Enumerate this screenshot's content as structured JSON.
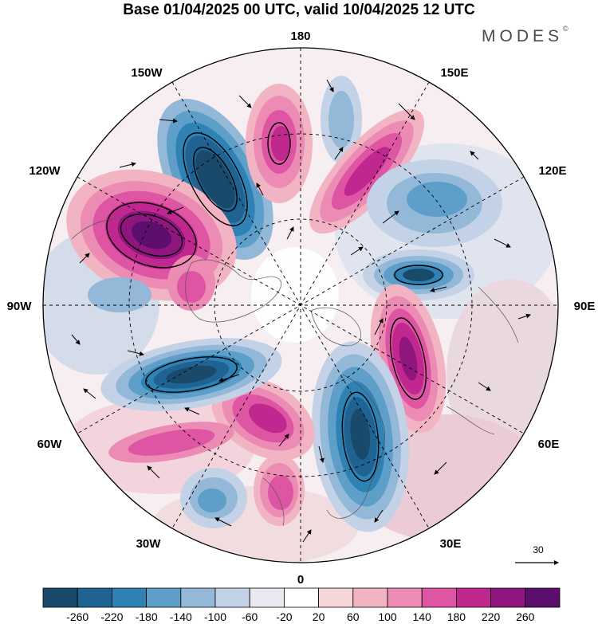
{
  "title": "Base 01/04/2025 00 UTC, valid 10/04/2025 12 UTC",
  "brand": {
    "name": "MODES",
    "mark": "©"
  },
  "longitude_labels": {
    "top": "180",
    "top_left": "150W",
    "top_right": "150E",
    "upper_left": "120W",
    "upper_right": "120E",
    "left": "90W",
    "right": "90E",
    "lower_left": "60W",
    "lower_right": "60E",
    "bottom_left": "30W",
    "bottom_right": "30E",
    "bottom": "0"
  },
  "reference_vector": {
    "label": "30"
  },
  "colorbar": {
    "labels": [
      "-260",
      "-220",
      "-180",
      "-140",
      "-100",
      "-60",
      "-20",
      "20",
      "60",
      "100",
      "140",
      "180",
      "220",
      "260"
    ],
    "colors": [
      "#1a4a6b",
      "#1f6393",
      "#2f82b4",
      "#5e9fca",
      "#93b8d8",
      "#c3d2e6",
      "#e8e8f1",
      "#ffffff",
      "#f7d6d8",
      "#f2b4c3",
      "#ec8cb4",
      "#dd55a3",
      "#c0278f",
      "#8f167f",
      "#5c0e6d"
    ]
  },
  "projection": "north-polar-stereographic",
  "anomaly_centres": [
    {
      "sign": "negative",
      "value": -260,
      "lon_sector": "160W"
    },
    {
      "sign": "positive",
      "value": 240,
      "lon_sector": "170W"
    },
    {
      "sign": "positive",
      "value": 260,
      "lon_sector": "120W"
    },
    {
      "sign": "negative",
      "value": -140,
      "lon_sector": "170E"
    },
    {
      "sign": "positive",
      "value": 220,
      "lon_sector": "160E"
    },
    {
      "sign": "negative",
      "value": -160,
      "lon_sector": "140E"
    },
    {
      "sign": "negative",
      "value": -260,
      "lon_sector": "110E"
    },
    {
      "sign": "positive",
      "value": 260,
      "lon_sector": "70E"
    },
    {
      "sign": "negative",
      "value": -260,
      "lon_sector": "20E"
    },
    {
      "sign": "positive",
      "value": 220,
      "lon_sector": "10W"
    },
    {
      "sign": "negative",
      "value": -180,
      "lon_sector": "40W"
    },
    {
      "sign": "positive",
      "value": 200,
      "lon_sector": "35W"
    },
    {
      "sign": "negative",
      "value": -260,
      "lon_sector": "70W"
    },
    {
      "sign": "negative",
      "value": -100,
      "lon_sector": "100W"
    }
  ]
}
